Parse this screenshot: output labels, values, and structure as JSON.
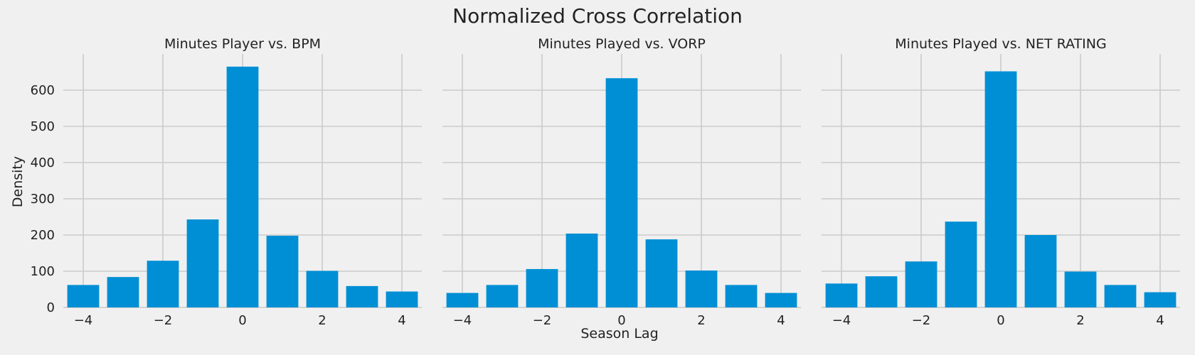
{
  "figure": {
    "suptitle": "Normalized Cross Correlation",
    "xlabel": "Season Lag",
    "ylabel": "Density"
  },
  "chart_data": [
    {
      "type": "bar",
      "title": "Minutes Player vs. BPM",
      "x": [
        -4,
        -3,
        -2,
        -1,
        0,
        1,
        2,
        3,
        4
      ],
      "values": [
        62,
        84,
        129,
        243,
        665,
        198,
        101,
        59,
        44
      ],
      "xticks": [
        -4,
        -2,
        0,
        2,
        4
      ],
      "yticks": [
        0,
        100,
        200,
        300,
        400,
        500,
        600
      ],
      "xlim": [
        -4.5,
        4.5
      ],
      "ylim": [
        0,
        700
      ],
      "ylabel": "Density",
      "xlabel": "",
      "color": "#008fd5",
      "grid": true
    },
    {
      "type": "bar",
      "title": "Minutes Played vs. VORP",
      "x": [
        -4,
        -3,
        -2,
        -1,
        0,
        1,
        2,
        3,
        4
      ],
      "values": [
        40,
        62,
        106,
        204,
        633,
        188,
        102,
        62,
        40
      ],
      "xticks": [
        -4,
        -2,
        0,
        2,
        4
      ],
      "yticks": [
        0,
        100,
        200,
        300,
        400,
        500,
        600
      ],
      "xlim": [
        -4.5,
        4.5
      ],
      "ylim": [
        0,
        700
      ],
      "ylabel": "",
      "xlabel": "Season Lag",
      "color": "#008fd5",
      "grid": true
    },
    {
      "type": "bar",
      "title": "Minutes Played vs. NET RATING",
      "x": [
        -4,
        -3,
        -2,
        -1,
        0,
        1,
        2,
        3,
        4
      ],
      "values": [
        66,
        86,
        127,
        237,
        652,
        200,
        99,
        62,
        42
      ],
      "xticks": [
        -4,
        -2,
        0,
        2,
        4
      ],
      "yticks": [
        0,
        100,
        200,
        300,
        400,
        500,
        600
      ],
      "xlim": [
        -4.5,
        4.5
      ],
      "ylim": [
        0,
        700
      ],
      "ylabel": "",
      "xlabel": "",
      "color": "#008fd5",
      "grid": true
    }
  ]
}
